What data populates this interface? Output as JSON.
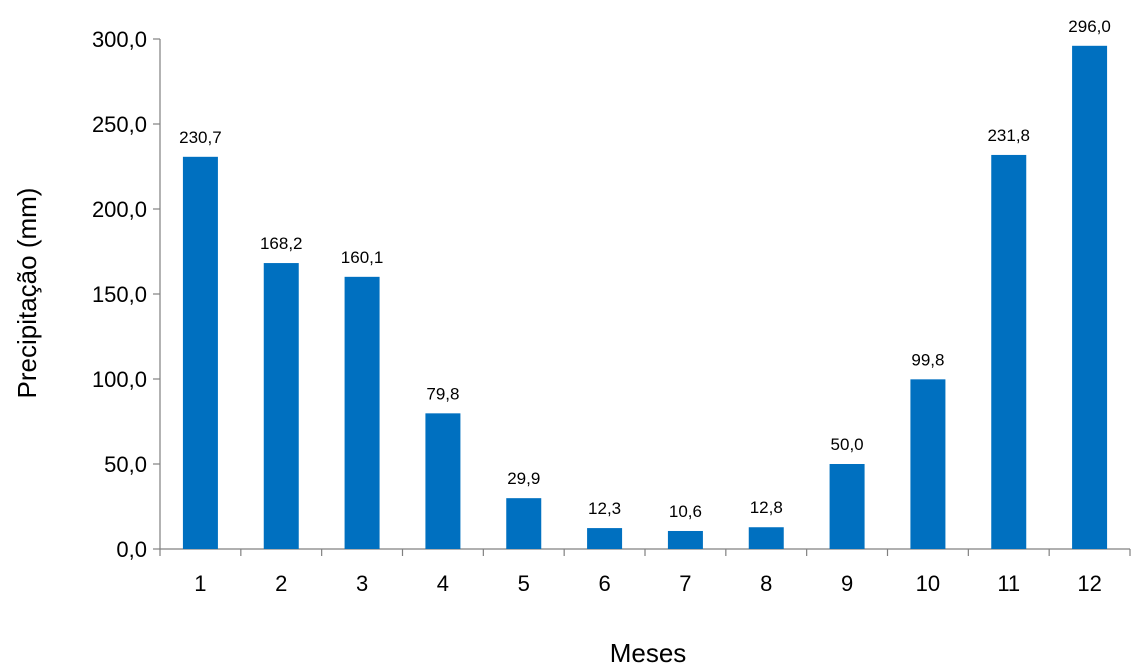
{
  "chart_data": {
    "type": "bar",
    "title": "",
    "xlabel": "Meses",
    "ylabel": "Precipitação (mm)",
    "categories": [
      "1",
      "2",
      "3",
      "4",
      "5",
      "6",
      "7",
      "8",
      "9",
      "10",
      "11",
      "12"
    ],
    "values": [
      230.7,
      168.2,
      160.1,
      79.8,
      29.9,
      12.3,
      10.6,
      12.8,
      50.0,
      99.8,
      231.8,
      296.0
    ],
    "value_labels": [
      "230,7",
      "168,2",
      "160,1",
      "79,8",
      "29,9",
      "12,3",
      "10,6",
      "12,8",
      "50,0",
      "99,8",
      "231,8",
      "296,0"
    ],
    "ylim": [
      0,
      300
    ],
    "yticks": [
      0,
      50,
      100,
      150,
      200,
      250,
      300
    ],
    "ytick_labels": [
      "0,0",
      "50,0",
      "100,0",
      "150,0",
      "200,0",
      "250,0",
      "300,0"
    ],
    "bar_color": "#0070C0",
    "axis_color": "#808080",
    "grid": false,
    "legend": "none"
  }
}
